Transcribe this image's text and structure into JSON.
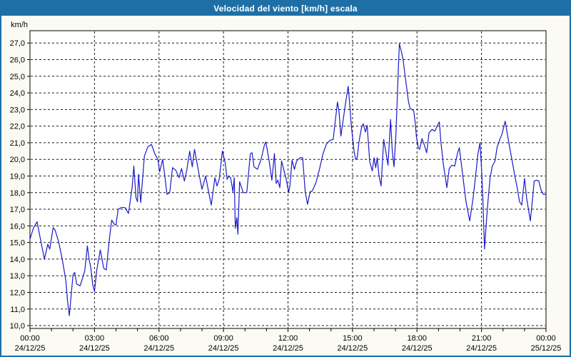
{
  "window": {
    "title": "Velocidad del viento [km/h] escala"
  },
  "colors": {
    "titlebar_bg": "#1d6fa5",
    "titlebar_text": "#ffffff",
    "page_bg": "#fbfbf3",
    "plot_bg": "#ffffff",
    "plot_border": "#000000",
    "grid": "#1a1a1a",
    "line": "#1a1ac8",
    "axis_text": "#000000"
  },
  "chart_data": {
    "type": "line",
    "title": "Velocidad del viento [km/h] escala",
    "ylabel": "km/h",
    "xlabel": "",
    "grid": "dashed",
    "legend": "none",
    "ylim": [
      9.8,
      27.7
    ],
    "xlim_hours": [
      0,
      24
    ],
    "y_ticks": [
      {
        "v": 27,
        "label": "27,0"
      },
      {
        "v": 26,
        "label": "26,0"
      },
      {
        "v": 25,
        "label": "25,0"
      },
      {
        "v": 24,
        "label": "24,0"
      },
      {
        "v": 23,
        "label": "23,0"
      },
      {
        "v": 22,
        "label": "22,0"
      },
      {
        "v": 21,
        "label": "21,0"
      },
      {
        "v": 20,
        "label": "20,0"
      },
      {
        "v": 19,
        "label": "19,0"
      },
      {
        "v": 18,
        "label": "18,0"
      },
      {
        "v": 17,
        "label": "17,0"
      },
      {
        "v": 16,
        "label": "16,0"
      },
      {
        "v": 15,
        "label": "15,0"
      },
      {
        "v": 14,
        "label": "14,0"
      },
      {
        "v": 13,
        "label": "13,0"
      },
      {
        "v": 12,
        "label": "12,0"
      },
      {
        "v": 11,
        "label": "11,0"
      },
      {
        "v": 10,
        "label": "10,0"
      }
    ],
    "x_ticks": [
      {
        "h": 0,
        "time": "00:00",
        "date": "24/12/25",
        "gridline": false
      },
      {
        "h": 3,
        "time": "03:00",
        "date": "24/12/25",
        "gridline": true
      },
      {
        "h": 6,
        "time": "06:00",
        "date": "24/12/25",
        "gridline": true
      },
      {
        "h": 9,
        "time": "09:00",
        "date": "24/12/25",
        "gridline": true
      },
      {
        "h": 12,
        "time": "12:00",
        "date": "24/12/25",
        "gridline": true
      },
      {
        "h": 15,
        "time": "15:00",
        "date": "24/12/25",
        "gridline": true
      },
      {
        "h": 18,
        "time": "18:00",
        "date": "24/12/25",
        "gridline": true
      },
      {
        "h": 21,
        "time": "21:00",
        "date": "24/12/25",
        "gridline": true
      },
      {
        "h": 24,
        "time": "00:00",
        "date": "25/12/25",
        "gridline": false
      }
    ],
    "series": [
      {
        "name": "Velocidad del viento [km/h]",
        "x_hours": [
          0,
          0.17,
          0.33,
          0.5,
          0.67,
          0.83,
          0.92,
          1.08,
          1.17,
          1.33,
          1.5,
          1.67,
          1.75,
          1.83,
          2.0,
          2.08,
          2.17,
          2.33,
          2.42,
          2.55,
          2.67,
          2.75,
          2.83,
          2.92,
          3.0,
          3.1,
          3.27,
          3.35,
          3.43,
          3.55,
          3.67,
          3.8,
          3.92,
          4.0,
          4.1,
          4.25,
          4.42,
          4.58,
          4.75,
          4.83,
          4.93,
          5.0,
          5.05,
          5.15,
          5.32,
          5.48,
          5.65,
          5.82,
          5.95,
          6.03,
          6.17,
          6.28,
          6.37,
          6.5,
          6.63,
          6.78,
          6.93,
          7.05,
          7.18,
          7.3,
          7.43,
          7.55,
          7.65,
          7.87,
          8.0,
          8.17,
          8.3,
          8.43,
          8.6,
          8.7,
          8.8,
          8.95,
          9.08,
          9.17,
          9.25,
          9.33,
          9.44,
          9.5,
          9.55,
          9.62,
          9.67,
          9.75,
          9.92,
          10.08,
          10.25,
          10.33,
          10.42,
          10.58,
          10.75,
          10.9,
          10.97,
          11.13,
          11.25,
          11.37,
          11.45,
          11.53,
          11.62,
          11.7,
          11.8,
          11.9,
          12.03,
          12.08,
          12.19,
          12.3,
          12.4,
          12.56,
          12.68,
          12.8,
          12.91,
          13.03,
          13.13,
          13.3,
          13.46,
          13.63,
          13.8,
          13.96,
          14.1,
          14.3,
          14.37,
          14.46,
          14.68,
          14.8,
          14.87,
          14.93,
          15.0,
          15.07,
          15.15,
          15.22,
          15.3,
          15.42,
          15.5,
          15.6,
          15.68,
          15.8,
          15.92,
          16.0,
          16.08,
          16.15,
          16.23,
          16.33,
          16.45,
          16.55,
          16.65,
          16.77,
          16.85,
          16.93,
          17.02,
          17.1,
          17.18,
          17.27,
          17.35,
          17.43,
          17.52,
          17.6,
          17.68,
          17.77,
          17.85,
          17.92,
          17.97,
          18.06,
          18.12,
          18.23,
          18.33,
          18.45,
          18.56,
          18.7,
          18.83,
          18.95,
          19.04,
          19.11,
          19.22,
          19.39,
          19.5,
          19.62,
          19.75,
          19.9,
          19.97,
          20.06,
          20.17,
          20.28,
          20.45,
          20.6,
          20.72,
          20.83,
          20.93,
          21.0,
          21.06,
          21.14,
          21.22,
          21.3,
          21.4,
          21.5,
          21.63,
          21.72,
          21.85,
          21.95,
          22.1,
          22.27,
          22.44,
          22.55,
          22.66,
          22.77,
          22.87,
          23.0,
          23.1,
          23.27,
          23.38,
          23.45,
          23.55,
          23.66,
          23.77,
          23.88,
          24.0
        ],
        "values": [
          15.2,
          15.9,
          16.25,
          15.1,
          14.0,
          14.9,
          14.6,
          15.9,
          15.75,
          15.05,
          14.0,
          12.7,
          11.45,
          10.6,
          13.05,
          13.2,
          12.5,
          12.4,
          12.75,
          13.3,
          14.8,
          14.0,
          13.45,
          12.45,
          12.05,
          13.3,
          14.55,
          14.0,
          13.45,
          13.35,
          14.95,
          16.35,
          16.1,
          16.05,
          17.0,
          17.1,
          17.1,
          16.75,
          18.3,
          19.6,
          17.7,
          17.45,
          19.1,
          17.4,
          20.2,
          20.75,
          20.9,
          20.3,
          20.0,
          19.25,
          20.0,
          18.9,
          17.9,
          18.0,
          19.5,
          19.35,
          18.9,
          19.45,
          18.7,
          19.4,
          20.5,
          19.55,
          20.6,
          19.05,
          18.2,
          19.0,
          18.1,
          17.25,
          18.9,
          18.4,
          18.8,
          20.5,
          19.8,
          18.8,
          19.0,
          18.9,
          18.05,
          18.9,
          15.85,
          16.5,
          15.5,
          18.65,
          18.0,
          18.0,
          20.35,
          20.4,
          19.55,
          19.4,
          20.0,
          20.85,
          21.05,
          19.85,
          18.75,
          20.35,
          18.55,
          18.75,
          18.3,
          19.9,
          19.4,
          18.9,
          18.05,
          18.3,
          19.95,
          19.4,
          19.9,
          20.1,
          20.1,
          18.05,
          17.3,
          18.05,
          18.1,
          18.6,
          19.4,
          20.35,
          20.95,
          21.15,
          21.2,
          23.45,
          22.9,
          21.4,
          23.4,
          24.4,
          23.3,
          22.2,
          21.35,
          20.5,
          20.0,
          20.1,
          21.05,
          21.9,
          22.15,
          21.65,
          22.05,
          19.85,
          19.3,
          20.1,
          19.5,
          20.1,
          19.05,
          18.4,
          21.2,
          20.45,
          19.65,
          22.4,
          20.5,
          19.55,
          21.5,
          24.3,
          26.95,
          26.5,
          26.0,
          25.2,
          24.3,
          23.5,
          23.05,
          23.0,
          22.9,
          22.2,
          21.4,
          20.7,
          20.6,
          21.25,
          20.9,
          20.4,
          21.6,
          21.8,
          21.7,
          22.05,
          22.25,
          21.05,
          19.75,
          18.3,
          19.45,
          19.65,
          19.6,
          20.45,
          20.7,
          19.75,
          18.6,
          17.45,
          16.3,
          17.6,
          18.95,
          20.3,
          21.0,
          19.45,
          17.75,
          14.6,
          16.15,
          17.5,
          18.9,
          19.6,
          19.9,
          20.7,
          21.2,
          21.5,
          22.3,
          21.0,
          19.8,
          19.0,
          18.3,
          17.45,
          17.25,
          18.85,
          17.65,
          16.3,
          17.7,
          18.7,
          18.75,
          18.7,
          18.15,
          17.9,
          17.9
        ]
      }
    ]
  }
}
